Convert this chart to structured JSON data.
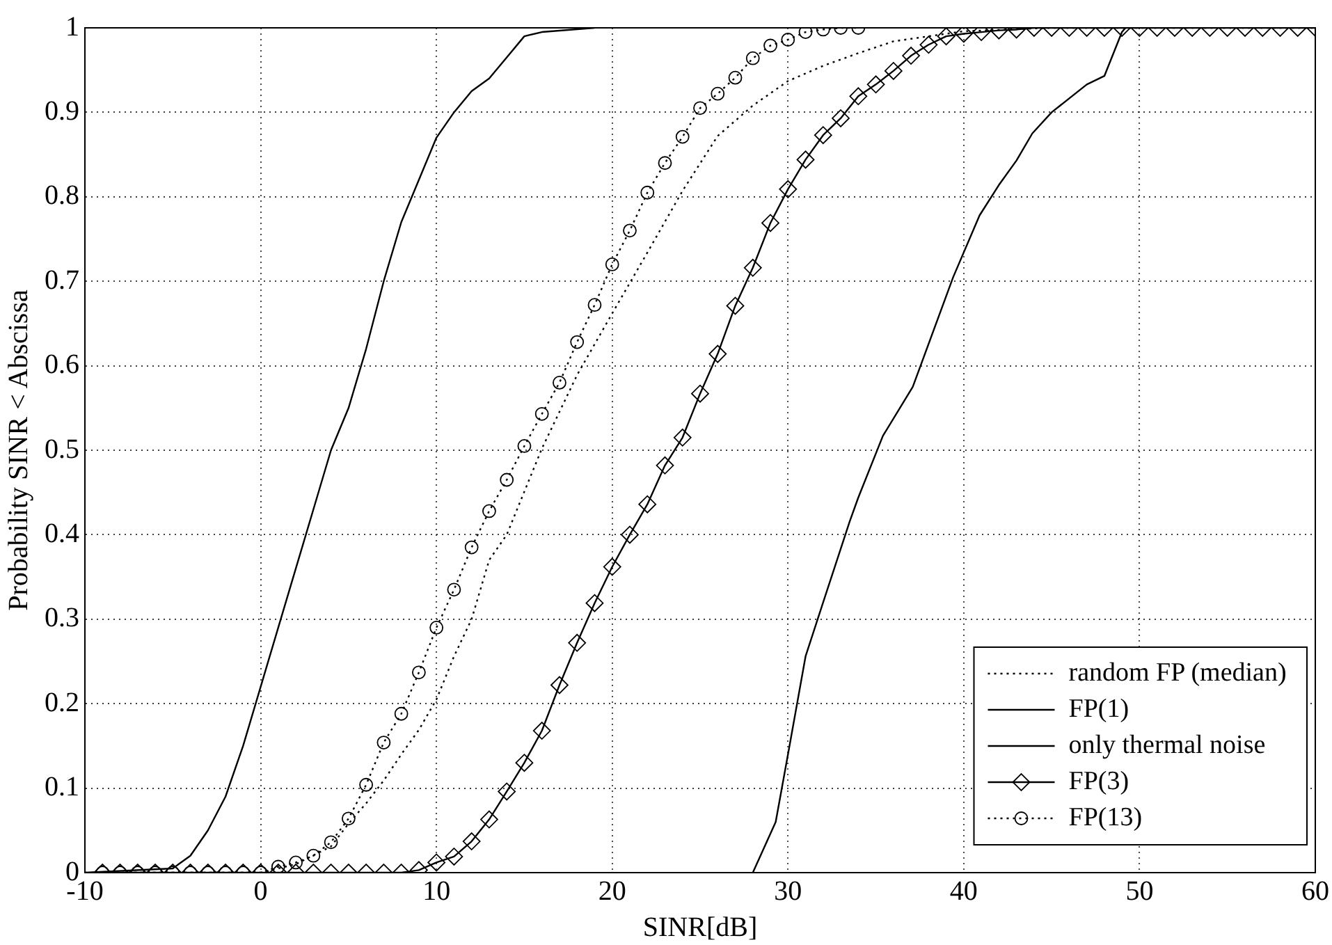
{
  "chart_data": {
    "type": "line",
    "xlabel": "SINR[dB]",
    "ylabel": "Probability SINR < Abscissa",
    "xlim": [
      -10,
      60
    ],
    "xticks": [
      -10,
      0,
      10,
      20,
      30,
      40,
      50,
      60
    ],
    "ylim": [
      0,
      1
    ],
    "yticks": [
      0,
      0.1,
      0.2,
      0.3,
      0.4,
      0.5,
      0.6,
      0.7,
      0.8,
      0.9,
      1
    ],
    "grid": true,
    "legend": "bottom right",
    "series": [
      {
        "name": "random FP (median)",
        "color": "#000000",
        "line_style": "dotted",
        "marker": "none",
        "x": [
          -10,
          0,
          2,
          4,
          5,
          6,
          7,
          8,
          9,
          10,
          11,
          12,
          13,
          14,
          16,
          18,
          20,
          22,
          24,
          26,
          28,
          30,
          32,
          34,
          36,
          38,
          40,
          45,
          60
        ],
        "values": [
          0,
          0,
          0.01,
          0.031,
          0.058,
          0.082,
          0.109,
          0.14,
          0.169,
          0.205,
          0.256,
          0.3,
          0.37,
          0.4,
          0.502,
          0.589,
          0.662,
          0.734,
          0.807,
          0.872,
          0.908,
          0.937,
          0.955,
          0.97,
          0.984,
          0.99,
          0.996,
          1,
          1
        ]
      },
      {
        "name": "FP(1)",
        "color": "#000000",
        "line_style": "solid",
        "marker": "none",
        "x": [
          -10,
          -5,
          -4,
          -3,
          -2,
          -1,
          0,
          1,
          2,
          3,
          4,
          5,
          6,
          7,
          8,
          9,
          10,
          11,
          12,
          13,
          14,
          15,
          16,
          19
        ],
        "values": [
          0,
          0.005,
          0.02,
          0.05,
          0.09,
          0.15,
          0.22,
          0.29,
          0.36,
          0.43,
          0.5,
          0.55,
          0.62,
          0.7,
          0.77,
          0.82,
          0.87,
          0.9,
          0.925,
          0.94,
          0.965,
          0.99,
          0.995,
          1
        ]
      },
      {
        "name": "only thermal noise",
        "color": "#000000",
        "line_style": "solid",
        "marker": "none",
        "x": [
          28,
          29.3,
          30,
          31,
          32,
          33.5,
          34,
          35.4,
          37.1,
          39.4,
          40.9,
          42,
          43,
          43.9,
          45,
          47,
          48,
          49,
          49.2
        ],
        "values": [
          0,
          0.06,
          0.14,
          0.256,
          0.32,
          0.415,
          0.444,
          0.517,
          0.575,
          0.705,
          0.778,
          0.814,
          0.843,
          0.875,
          0.9,
          0.933,
          0.943,
          0.995,
          1
        ]
      },
      {
        "name": "FP(3)",
        "color": "#000000",
        "line_style": "solid",
        "marker": "diamond",
        "x": [
          -9,
          -8,
          -7,
          -6,
          -5,
          -4,
          -3,
          -2,
          -1,
          0,
          1,
          2,
          3,
          4,
          5,
          6,
          7,
          8,
          9,
          10,
          11,
          12,
          13,
          14,
          15,
          16,
          17,
          18,
          19,
          20,
          21,
          22,
          23,
          24,
          25,
          26,
          27,
          28,
          29,
          30,
          31,
          32,
          33,
          34,
          35,
          36,
          37,
          38,
          39,
          40,
          41,
          42,
          43,
          44,
          45,
          46,
          47,
          48,
          49,
          50,
          51,
          52,
          53,
          54,
          55,
          56,
          57,
          58,
          59,
          60
        ],
        "values": [
          0,
          0,
          0,
          0,
          0,
          0,
          0,
          0,
          0,
          0,
          0,
          0,
          0,
          0,
          0,
          0,
          0,
          0,
          0.003,
          0.012,
          0.019,
          0.037,
          0.063,
          0.096,
          0.13,
          0.168,
          0.222,
          0.272,
          0.319,
          0.362,
          0.4,
          0.436,
          0.482,
          0.515,
          0.567,
          0.614,
          0.671,
          0.716,
          0.769,
          0.809,
          0.844,
          0.873,
          0.893,
          0.919,
          0.933,
          0.949,
          0.967,
          0.98,
          0.99,
          0.993,
          0.995,
          0.997,
          0.998,
          1,
          1,
          1,
          1,
          1,
          1,
          1,
          1,
          1,
          1,
          1,
          1,
          1,
          1,
          1,
          1,
          1
        ]
      },
      {
        "name": "FP(13)",
        "color": "#000000",
        "line_style": "dotted",
        "marker": "circle",
        "x": [
          -9,
          -8,
          -7,
          -6,
          -5,
          -4,
          -3,
          -2,
          -1,
          0,
          1,
          2,
          3,
          4,
          5,
          6,
          7,
          8,
          9,
          10,
          11,
          12,
          13,
          14,
          15,
          16,
          17,
          18,
          19,
          20,
          21,
          22,
          23,
          24,
          25,
          26,
          27,
          28,
          29,
          30,
          31,
          32,
          33,
          34
        ],
        "values": [
          0,
          0,
          0,
          0,
          0,
          0,
          0,
          0,
          0,
          0,
          0.007,
          0.012,
          0.02,
          0.036,
          0.064,
          0.104,
          0.154,
          0.188,
          0.237,
          0.29,
          0.335,
          0.385,
          0.428,
          0.465,
          0.505,
          0.543,
          0.58,
          0.628,
          0.672,
          0.72,
          0.76,
          0.805,
          0.84,
          0.871,
          0.905,
          0.922,
          0.941,
          0.964,
          0.979,
          0.986,
          0.995,
          0.998,
          1,
          1
        ]
      }
    ]
  }
}
